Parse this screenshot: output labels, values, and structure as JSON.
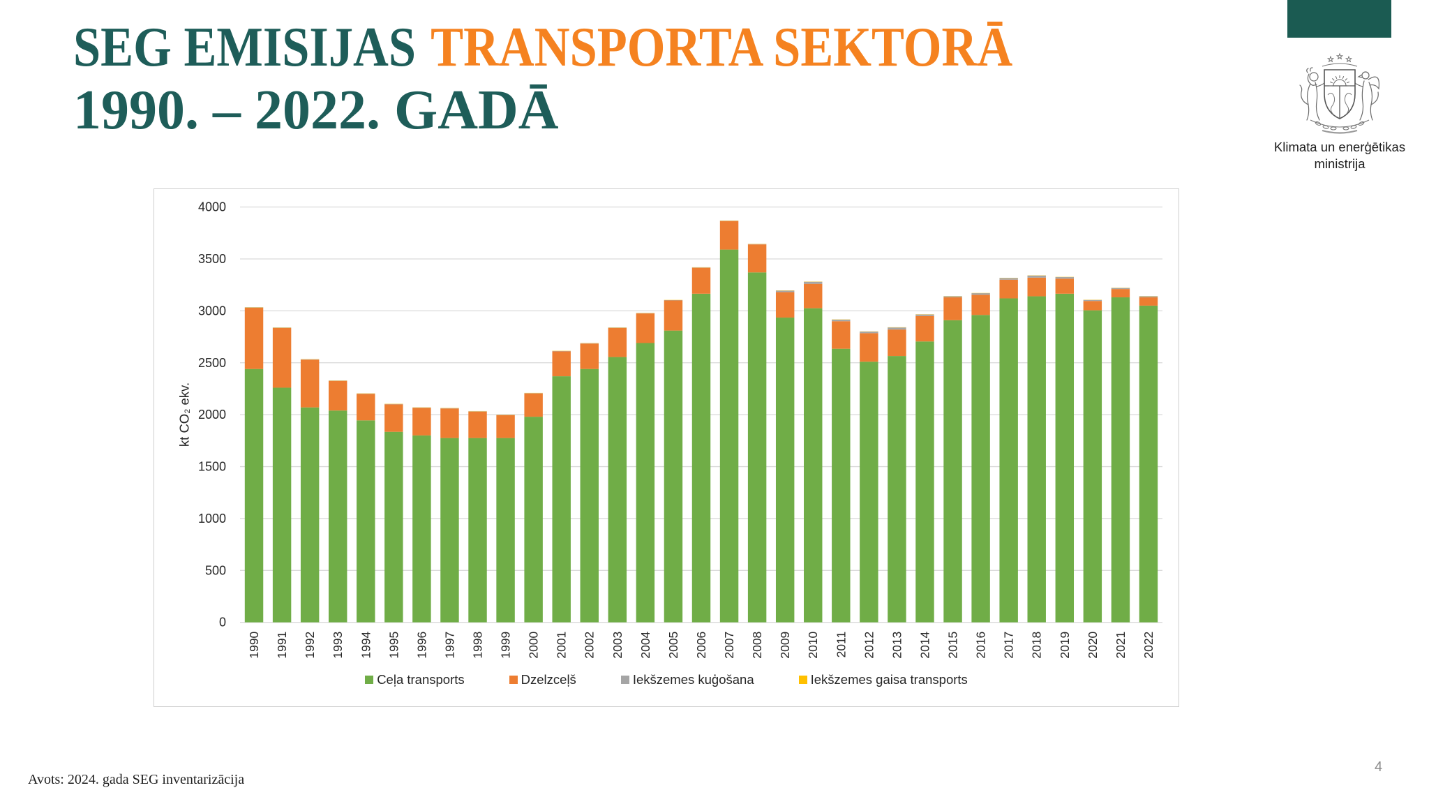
{
  "slide": {
    "title_part1": "SEG EMISIJAS",
    "title_part2": "TRANSPORTA SEKTORĀ",
    "title_line2": "1990. – 2022. GADĀ",
    "ministry_line1": "Klimata un enerģētikas",
    "ministry_line2": "ministrija",
    "source": "Avots: 2024. gada SEG inventarizācija",
    "page_number": "4"
  },
  "colors": {
    "title_teal": "#1e5d59",
    "title_orange": "#f58220",
    "header_bar": "#1b5b52",
    "gridline": "#d9d9d9"
  },
  "icons": {
    "emblem": "coat-of-arms-emblem"
  },
  "chart_data": {
    "type": "bar",
    "stacked": true,
    "ylabel": "kt CO₂ ekv.",
    "ylim": [
      0,
      4000
    ],
    "yticks": [
      0,
      500,
      1000,
      1500,
      2000,
      2500,
      3000,
      3500,
      4000
    ],
    "grid": true,
    "legend_position": "bottom",
    "categories": [
      "1990",
      "1991",
      "1992",
      "1993",
      "1994",
      "1995",
      "1996",
      "1997",
      "1998",
      "1999",
      "2000",
      "2001",
      "2002",
      "2003",
      "2004",
      "2005",
      "2006",
      "2007",
      "2008",
      "2009",
      "2010",
      "2011",
      "2012",
      "2013",
      "2014",
      "2015",
      "2016",
      "2017",
      "2018",
      "2019",
      "2020",
      "2021",
      "2022"
    ],
    "series": [
      {
        "name": "Ceļa transports",
        "color": "#70ad47",
        "values": [
          2440,
          2260,
          2070,
          2040,
          1945,
          1835,
          1800,
          1775,
          1775,
          1775,
          1980,
          2370,
          2440,
          2555,
          2690,
          2810,
          3165,
          3590,
          3370,
          2935,
          3025,
          2635,
          2510,
          2565,
          2705,
          2910,
          2960,
          3120,
          3140,
          3165,
          3005,
          3130,
          3050
        ]
      },
      {
        "name": "Dzelzceļš",
        "color": "#ed7d31",
        "values": [
          590,
          575,
          460,
          285,
          255,
          265,
          265,
          285,
          255,
          220,
          225,
          240,
          245,
          280,
          285,
          290,
          250,
          275,
          270,
          245,
          235,
          265,
          275,
          255,
          245,
          220,
          195,
          180,
          180,
          145,
          90,
          80,
          80
        ]
      },
      {
        "name": "Iekšzemes kuģošana",
        "color": "#a5a5a5",
        "values": [
          3,
          3,
          3,
          3,
          3,
          3,
          3,
          3,
          3,
          3,
          3,
          3,
          3,
          3,
          3,
          3,
          3,
          3,
          3,
          15,
          20,
          15,
          15,
          20,
          15,
          10,
          15,
          15,
          20,
          15,
          10,
          10,
          10
        ]
      },
      {
        "name": "Iekšzemes gaisa transports",
        "color": "#ffc000",
        "values": [
          2,
          2,
          2,
          2,
          2,
          2,
          2,
          2,
          2,
          2,
          2,
          2,
          2,
          2,
          2,
          2,
          2,
          2,
          2,
          2,
          2,
          2,
          2,
          2,
          2,
          2,
          2,
          2,
          2,
          2,
          2,
          2,
          2
        ]
      }
    ]
  }
}
